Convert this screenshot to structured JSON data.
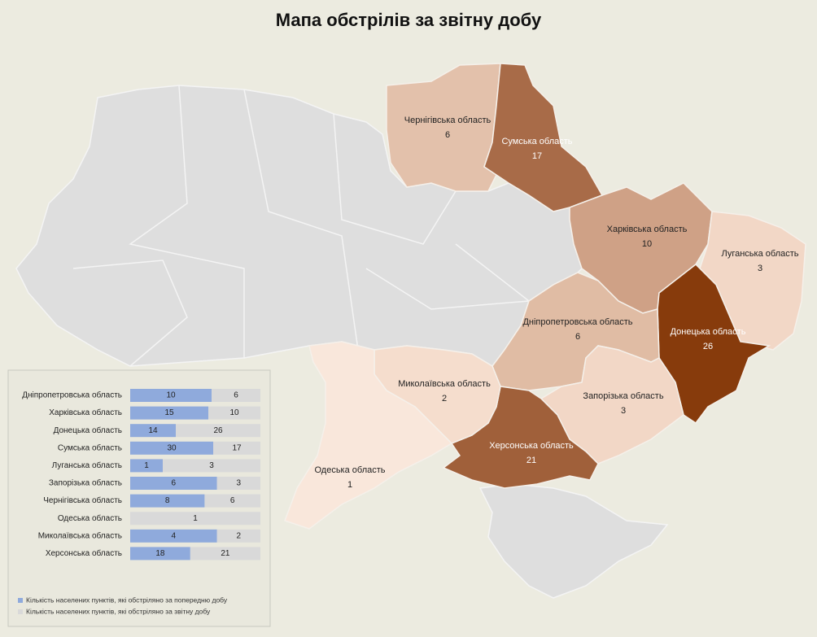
{
  "title": "Мапа обстрілів за звітну добу",
  "map": {
    "regions": [
      {
        "name": "Чернігівська область",
        "value": 6,
        "color": "#e3c1ab"
      },
      {
        "name": "Сумська область",
        "value": 17,
        "color": "#a86b48"
      },
      {
        "name": "Харківська область",
        "value": 10,
        "color": "#cfa186"
      },
      {
        "name": "Луганська область",
        "value": 3,
        "color": "#f2d7c6"
      },
      {
        "name": "Донецька область",
        "value": 26,
        "color": "#873b0c"
      },
      {
        "name": "Дніпропетровська область",
        "value": 6,
        "color": "#e0bca4"
      },
      {
        "name": "Запорізька область",
        "value": 3,
        "color": "#f2d7c6"
      },
      {
        "name": "Херсонська область",
        "value": 21,
        "color": "#a0603a"
      },
      {
        "name": "Миколаївська область",
        "value": 2,
        "color": "#f5ddcd"
      },
      {
        "name": "Одеська область",
        "value": 1,
        "color": "#f9e7db"
      }
    ]
  },
  "chart_data": {
    "type": "bar",
    "stacking": "percent",
    "categories": [
      "Дніпропетровська область",
      "Харківська область",
      "Донецька область",
      "Сумська область",
      "Луганська область",
      "Запорізька область",
      "Чернігівська область",
      "Одеська область",
      "Миколаївська область",
      "Херсонська область"
    ],
    "series": [
      {
        "name": "Кількість населених пунктів, які обстріляно за попередню добу",
        "color": "#8faadc",
        "values": [
          10,
          15,
          14,
          30,
          1,
          6,
          8,
          null,
          4,
          18
        ]
      },
      {
        "name": "Кількість населених пунктів, які обстріляно за звітну добу",
        "color": "#d9d9d9",
        "values": [
          6,
          10,
          26,
          17,
          3,
          3,
          6,
          1,
          2,
          21
        ]
      }
    ]
  }
}
